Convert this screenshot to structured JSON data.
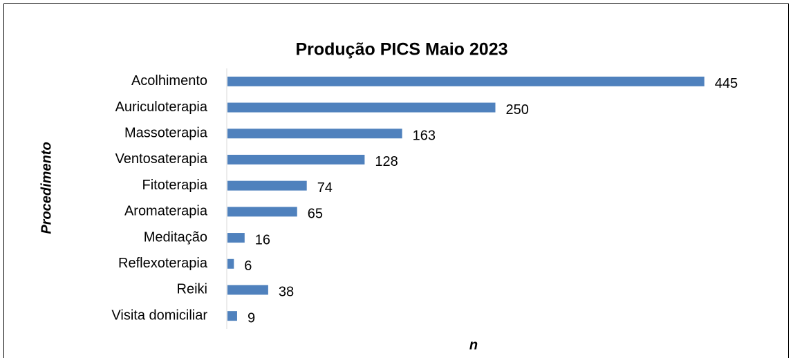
{
  "chart_data": {
    "type": "barh",
    "title": "Produção PICS Maio 2023",
    "xlabel": "n",
    "ylabel": "Procedimento",
    "categories": [
      "Acolhimento",
      "Auriculoterapia",
      "Massoterapia",
      "Ventosaterapia",
      "Fitoterapia",
      "Aromaterapia",
      "Meditação",
      "Reflexoterapia",
      "Reiki",
      "Visita domiciliar"
    ],
    "values": [
      445,
      250,
      163,
      128,
      74,
      65,
      16,
      6,
      38,
      9
    ],
    "color": "#4f81bd",
    "xlim": [
      0,
      500
    ],
    "grid": false
  }
}
